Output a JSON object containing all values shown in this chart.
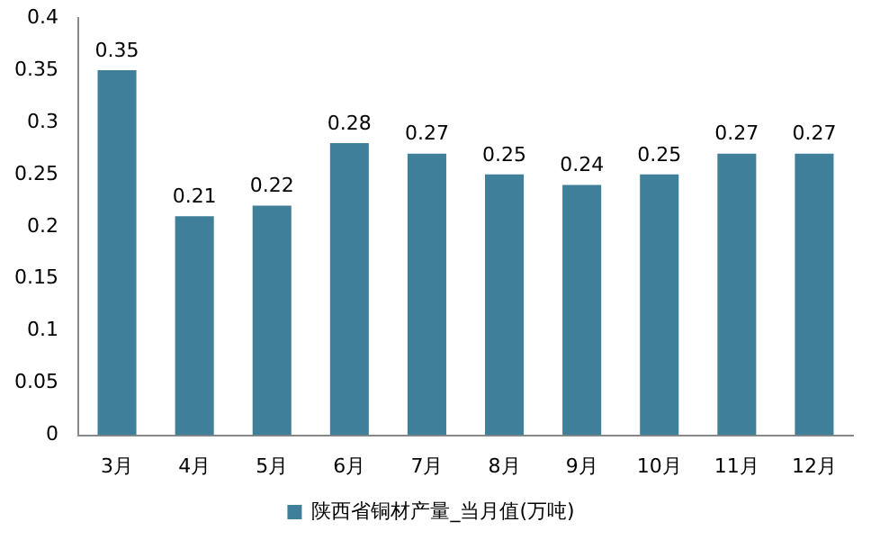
{
  "chart_data": {
    "type": "bar",
    "categories": [
      "3月",
      "4月",
      "5月",
      "6月",
      "7月",
      "8月",
      "9月",
      "10月",
      "11月",
      "12月"
    ],
    "series": [
      {
        "name": "陕西省铜材产量_当月值(万吨)",
        "color": "#3f7f9a",
        "values": [
          0.35,
          0.21,
          0.22,
          0.28,
          0.27,
          0.25,
          0.24,
          0.25,
          0.27,
          0.27
        ]
      }
    ],
    "ylim": [
      0,
      0.4
    ],
    "yticks": [
      0,
      0.05,
      0.1,
      0.15,
      0.2,
      0.25,
      0.3,
      0.35,
      0.4
    ],
    "grid": false,
    "legend": "bottom",
    "data_labels": true
  }
}
